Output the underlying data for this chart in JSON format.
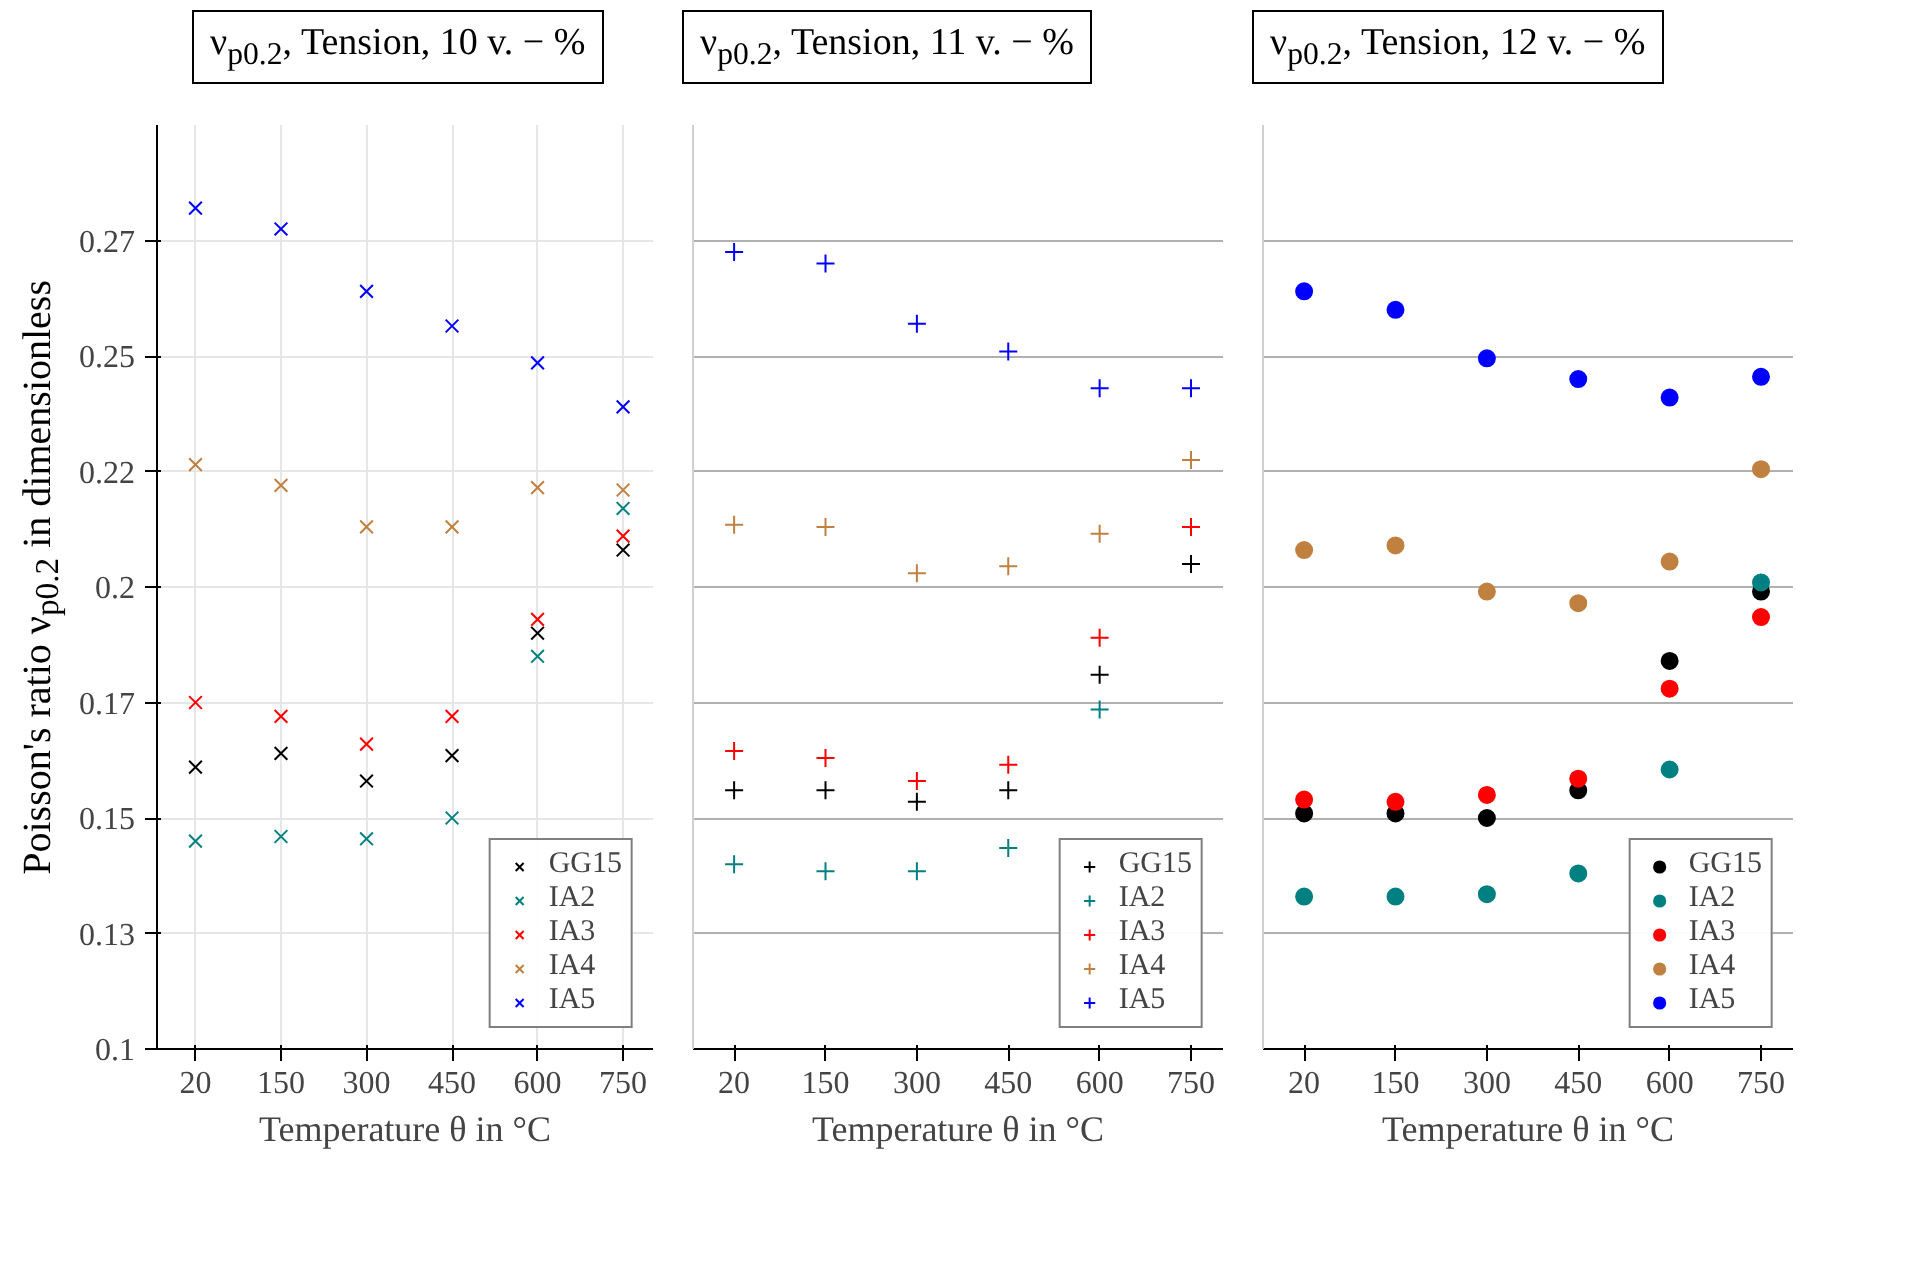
{
  "chart_data": [
    {
      "type": "scatter",
      "title": "ν$_{p0.2}$, Tension, 10 v. − %",
      "xlabel": "Temperature θ in °C",
      "ylabel": "Poisson's ratio ν$_{p0.2}$ in dimensionless",
      "categories": [
        "20",
        "150",
        "300",
        "450",
        "600",
        "750"
      ],
      "ylim": [
        0.1,
        0.3
      ],
      "yticks": [
        0.1,
        {
          "value": 0.125,
          "label": "0.13"
        },
        0.15,
        {
          "value": 0.175,
          "label": "0.17"
        },
        0.2,
        {
          "value": 0.225,
          "label": "0.22"
        },
        0.25,
        {
          "value": 0.275,
          "label": "0.27"
        }
      ],
      "grid": true,
      "legend": "bottom right",
      "marker": "x",
      "series": [
        {
          "name": "GG15",
          "color": "#000000",
          "values": [
            0.161,
            0.164,
            0.158,
            0.1635,
            0.19,
            0.208
          ]
        },
        {
          "name": "IA2",
          "color": "#008080",
          "values": [
            0.145,
            0.146,
            0.1455,
            0.15,
            0.185,
            0.217
          ]
        },
        {
          "name": "IA3",
          "color": "#ff0000",
          "values": [
            0.175,
            0.172,
            0.166,
            0.172,
            0.193,
            0.211
          ]
        },
        {
          "name": "IA4",
          "color": "#c08040",
          "values": [
            0.2265,
            0.222,
            0.213,
            0.213,
            0.2215,
            0.221
          ]
        },
        {
          "name": "IA5",
          "color": "#0000ff",
          "values": [
            0.282,
            0.2775,
            0.264,
            0.2565,
            0.2485,
            0.239
          ]
        }
      ]
    },
    {
      "type": "scatter",
      "title": "ν$_{p0.2}$, Tension, 11 v. − %",
      "xlabel": "Temperature θ in °C",
      "categories": [
        "20",
        "150",
        "300",
        "450",
        "600",
        "750"
      ],
      "ylim": [
        0.1,
        0.3
      ],
      "yticks": [
        0.1,
        0.125,
        0.15,
        0.175,
        0.2,
        0.225,
        0.25,
        0.275
      ],
      "tick_labels": "x",
      "grid": "y",
      "legend": "bottom right",
      "marker": "cross",
      "series": [
        {
          "name": "GG15",
          "color": "#000000",
          "values": [
            0.156,
            0.156,
            0.1535,
            0.156,
            0.181,
            0.205
          ]
        },
        {
          "name": "IA2",
          "color": "#008080",
          "values": [
            0.14,
            0.1385,
            0.1385,
            0.1435,
            0.1735,
            null
          ]
        },
        {
          "name": "IA3",
          "color": "#ff0000",
          "values": [
            0.1645,
            0.163,
            0.158,
            0.1615,
            0.189,
            0.213
          ]
        },
        {
          "name": "IA4",
          "color": "#c08040",
          "values": [
            0.2135,
            0.213,
            0.203,
            0.2045,
            0.2115,
            0.2275
          ]
        },
        {
          "name": "IA5",
          "color": "#0000ff",
          "values": [
            0.2725,
            0.27,
            0.257,
            0.251,
            0.243,
            0.243
          ]
        }
      ]
    },
    {
      "type": "scatter",
      "title": "ν$_{p0.2}$, Tension, 12 v. − %",
      "xlabel": "Temperature θ in °C",
      "categories": [
        "20",
        "150",
        "300",
        "450",
        "600",
        "750"
      ],
      "ylim": [
        0.1,
        0.3
      ],
      "yticks": [
        0.1,
        0.125,
        0.15,
        0.175,
        0.2,
        0.225,
        0.25,
        0.275
      ],
      "tick_labels": "x",
      "grid": "y",
      "legend": "bottom right",
      "marker": "circle",
      "series": [
        {
          "name": "GG15",
          "color": "#000000",
          "values": [
            0.151,
            0.151,
            0.15,
            0.156,
            0.184,
            0.199
          ]
        },
        {
          "name": "IA2",
          "color": "#008080",
          "values": [
            0.133,
            0.133,
            0.1335,
            0.138,
            0.1605,
            0.201
          ]
        },
        {
          "name": "IA3",
          "color": "#ff0000",
          "values": [
            0.154,
            0.1535,
            0.155,
            0.1585,
            0.178,
            0.1935
          ]
        },
        {
          "name": "IA4",
          "color": "#c08040",
          "values": [
            0.208,
            0.209,
            0.199,
            0.1965,
            0.2055,
            0.2255
          ]
        },
        {
          "name": "IA5",
          "color": "#0000ff",
          "values": [
            0.264,
            0.26,
            0.2495,
            0.245,
            0.241,
            0.2455
          ]
        }
      ]
    }
  ]
}
